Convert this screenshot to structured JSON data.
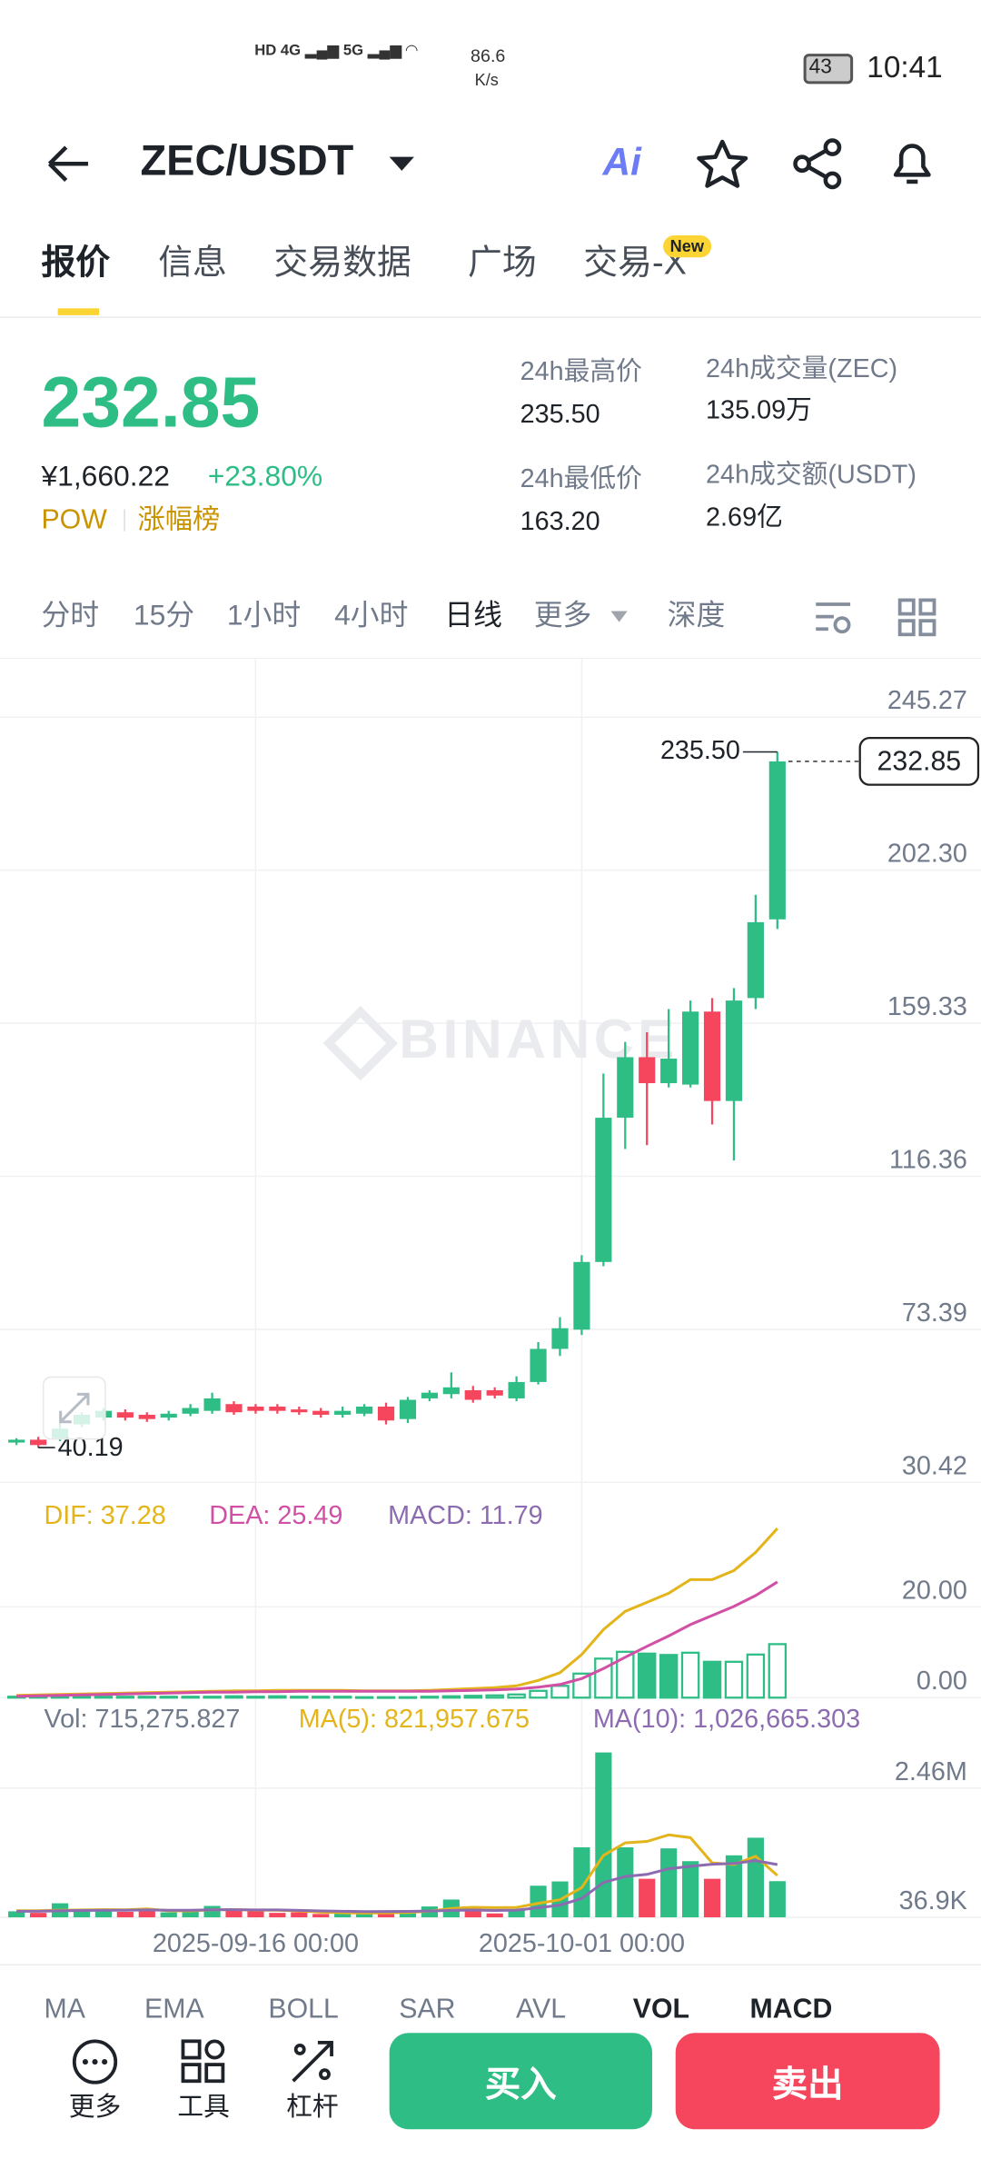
{
  "status_bar": {
    "speed": "86.6",
    "speed_unit": "K/s",
    "battery": "43",
    "time": "10:41"
  },
  "header": {
    "pair": "ZEC/USDT"
  },
  "tabs": [
    "报价",
    "信息",
    "交易数据",
    "广场",
    "交易-X"
  ],
  "tab_badge": "New",
  "ticker": {
    "last": "232.85",
    "cny": "¥1,660.22",
    "change": "+23.80%",
    "tags": [
      "POW",
      "涨幅榜"
    ],
    "stats": [
      {
        "label": "24h最高价",
        "value": "235.50"
      },
      {
        "label": "24h成交量(ZEC)",
        "value": "135.09万"
      },
      {
        "label": "24h最低价",
        "value": "163.20"
      },
      {
        "label": "24h成交额(USDT)",
        "value": "2.69亿"
      }
    ]
  },
  "intervals": [
    "分时",
    "15分",
    "1小时",
    "4小时",
    "日线",
    "更多",
    "深度"
  ],
  "chart_data": [
    {
      "type": "candlestick",
      "watermark": "BINANCE",
      "grid": true,
      "categories": [
        null,
        null,
        null,
        null,
        null,
        null,
        null,
        null,
        null,
        null,
        null,
        "2025-09-16 00:00",
        null,
        null,
        null,
        null,
        null,
        null,
        null,
        null,
        null,
        null,
        null,
        null,
        null,
        null,
        "2025-10-01 00:00",
        null,
        null,
        null,
        null,
        null,
        null,
        null,
        null,
        null
      ],
      "open": [
        41.6,
        42.4,
        42.8,
        46.7,
        48.6,
        50.1,
        49.4,
        48.6,
        49.7,
        50.5,
        52.4,
        51.7,
        51.7,
        50.9,
        50.5,
        49.4,
        49.7,
        51.7,
        48.2,
        54.0,
        55.2,
        56.3,
        56.3,
        54.0,
        58.6,
        67.9,
        73.3,
        92.3,
        132.8,
        149.8,
        142.5,
        142.1,
        162.6,
        137.5,
        166.4,
        188.5
      ],
      "high": [
        42.8,
        43.2,
        47.1,
        50.1,
        51.3,
        50.9,
        50.1,
        50.5,
        52.4,
        55.6,
        53.2,
        52.4,
        52.4,
        51.7,
        51.3,
        51.7,
        52.4,
        52.8,
        54.4,
        56.3,
        61.3,
        57.5,
        57.1,
        60.2,
        69.8,
        76.8,
        94.2,
        145.2,
        154.1,
        156.8,
        163.3,
        165.7,
        166.4,
        169.2,
        195.4,
        235.5
      ],
      "low": [
        40.9,
        40.19,
        42.0,
        45.9,
        47.8,
        47.8,
        47.4,
        47.8,
        49.0,
        49.7,
        49.4,
        49.7,
        49.7,
        49.4,
        48.6,
        48.6,
        49.0,
        46.7,
        47.1,
        53.2,
        54.0,
        52.8,
        54.0,
        53.2,
        57.9,
        65.9,
        71.8,
        91.1,
        124.0,
        125.1,
        141.3,
        141.3,
        130.9,
        120.8,
        163.3,
        185.8
      ],
      "close": [
        42.4,
        40.9,
        45.5,
        49.4,
        50.5,
        48.6,
        48.2,
        49.7,
        51.3,
        54.0,
        50.1,
        50.5,
        50.5,
        50.1,
        49.4,
        50.5,
        51.7,
        47.8,
        53.6,
        55.6,
        57.1,
        53.6,
        54.8,
        58.6,
        67.9,
        73.7,
        92.3,
        132.8,
        149.8,
        142.5,
        149.4,
        162.6,
        137.5,
        165.7,
        187.7,
        232.85
      ],
      "up_color": "#2ebd85",
      "down_color": "#f6465d",
      "ylim": [
        30.42,
        261.9
      ],
      "yticks": [
        245.27,
        {
          "value": 202.3,
          "label": "202.30"
        },
        159.33,
        116.36,
        73.39,
        30.42
      ],
      "last_price": 232.85,
      "high_label": {
        "value": 235.5,
        "label": "235.50"
      },
      "low_label": 40.19
    },
    {
      "type": "macd",
      "ylim": [
        -2,
        45
      ],
      "yticks": [
        {
          "value": 20,
          "label": "20.00"
        },
        {
          "value": 0,
          "label": "0.00"
        }
      ],
      "series": [
        {
          "name": "DIF: 37.28",
          "color": "#e3b51b",
          "values": [
            0.5,
            0.6,
            0.7,
            0.8,
            0.9,
            1.0,
            1.1,
            1.2,
            1.3,
            1.4,
            1.5,
            1.5,
            1.6,
            1.6,
            1.6,
            1.6,
            1.5,
            1.5,
            1.5,
            1.6,
            1.8,
            2.0,
            2.2,
            2.6,
            3.8,
            5.5,
            9.5,
            15,
            19,
            21,
            23,
            26,
            26,
            28,
            32,
            37.28
          ]
        },
        {
          "name": "DEA: 25.49",
          "color": "#d24fa6",
          "values": [
            0.3,
            0.4,
            0.5,
            0.6,
            0.7,
            0.8,
            0.9,
            1.0,
            1.1,
            1.2,
            1.2,
            1.3,
            1.3,
            1.4,
            1.4,
            1.4,
            1.4,
            1.4,
            1.4,
            1.4,
            1.5,
            1.6,
            1.7,
            1.9,
            2.3,
            2.9,
            4.2,
            6.4,
            8.9,
            11.3,
            13.6,
            16.1,
            18.1,
            20.1,
            22.5,
            25.49
          ]
        },
        {
          "name": "MACD: 11.79",
          "color": "#8c6bb1",
          "values": [
            0.2,
            0.2,
            0.2,
            0.2,
            0.2,
            0.2,
            0.2,
            0.2,
            0.2,
            0.2,
            0.3,
            0.2,
            0.3,
            0.2,
            0.2,
            0.2,
            0.1,
            0.1,
            0.1,
            0.2,
            0.3,
            0.4,
            0.5,
            0.7,
            1.5,
            2.6,
            5.3,
            8.6,
            10.1,
            9.7,
            9.4,
            9.9,
            7.9,
            7.9,
            9.5,
            11.79
          ]
        }
      ]
    },
    {
      "type": "volume",
      "ylim": [
        36900,
        3420000
      ],
      "yticks": [
        {
          "value": 2460000,
          "label": "2.46M"
        },
        {
          "value": 36900,
          "label": "36.9K"
        }
      ],
      "series": [
        {
          "name": "Vol: 715,275.827",
          "color": "#707a8a",
          "values": [
            150000,
            120000,
            300000,
            180000,
            150000,
            140000,
            200000,
            130000,
            160000,
            250000,
            170000,
            150000,
            120000,
            130000,
            100000,
            110000,
            120000,
            140000,
            150000,
            240000,
            370000,
            220000,
            110000,
            170000,
            630000,
            710000,
            1350000,
            3130000,
            1350000,
            760000,
            1330000,
            1090000,
            760000,
            1200000,
            1530000,
            715275.827
          ]
        },
        {
          "name": "MA(5): 821,957.675",
          "color": "#e3b51b",
          "values": [
            160000,
            160000,
            170000,
            175000,
            180000,
            178000,
            194000,
            160000,
            156000,
            178000,
            182000,
            172000,
            170000,
            156000,
            134000,
            122000,
            116000,
            120000,
            128000,
            152000,
            204000,
            224000,
            218000,
            222000,
            300000,
            366000,
            594000,
            1198000,
            1434000,
            1460000,
            1584000,
            1532000,
            1058000,
            1028000,
            1182000,
            821957.675
          ]
        },
        {
          "name": "MA(10): 1,026,665.303",
          "color": "#8c6bb1",
          "values": [
            150000,
            150000,
            160000,
            165000,
            170000,
            170000,
            175000,
            170000,
            170000,
            178000,
            180000,
            175000,
            176000,
            167000,
            156000,
            150000,
            144000,
            145000,
            148000,
            154000,
            168000,
            173000,
            166000,
            171000,
            216000,
            266000,
            390000,
            690000,
            803000,
            842000,
            948000,
            994000,
            1032000,
            1048000,
            1100000,
            1026665.303
          ]
        }
      ]
    }
  ],
  "indicators": [
    "MA",
    "EMA",
    "BOLL",
    "SAR",
    "AVL",
    "VOL",
    "MACD"
  ],
  "bottom_bar": {
    "tools": [
      "更多",
      "工具",
      "杠杆"
    ],
    "buy": "买入",
    "sell": "卖出"
  }
}
